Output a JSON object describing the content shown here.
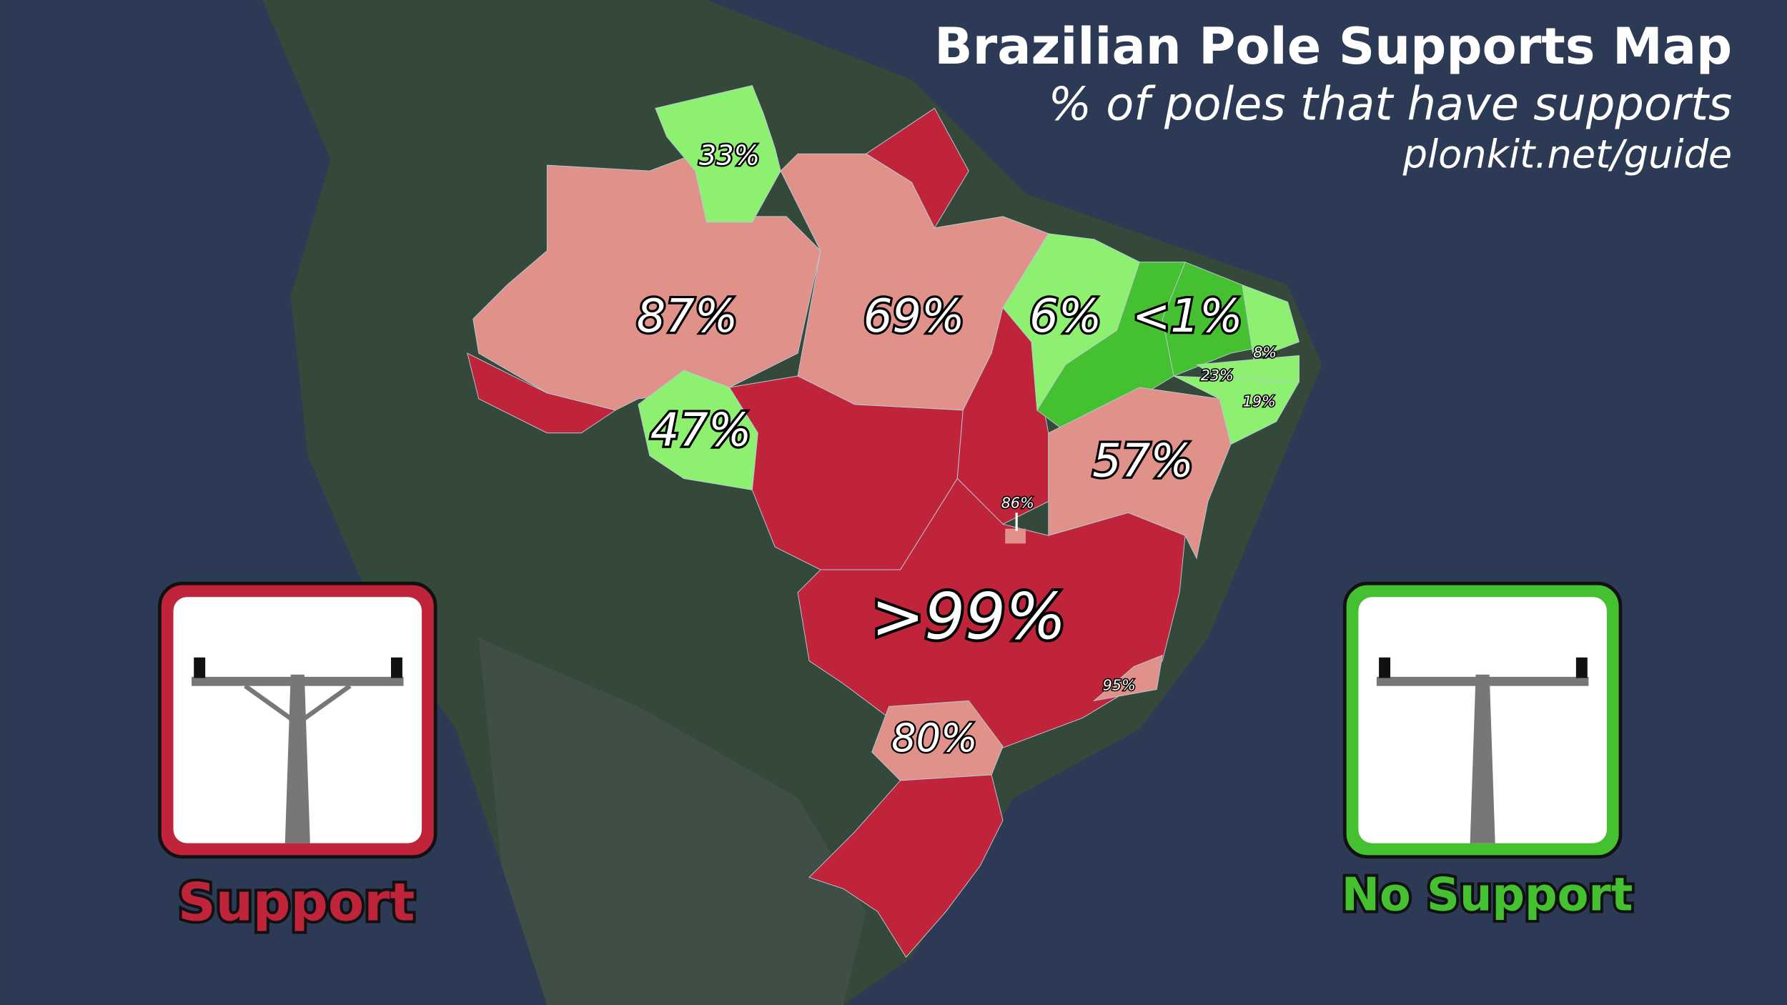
{
  "header": {
    "title": "Brazilian Pole Supports Map",
    "subtitle": "% of poles that have supports",
    "source": "plonkit.net/guide"
  },
  "regions": [
    {
      "label": "33%"
    },
    {
      "label": "87%"
    },
    {
      "label": "69%"
    },
    {
      "label": "6%"
    },
    {
      "label": "<1%"
    },
    {
      "label": "8%"
    },
    {
      "label": "23%"
    },
    {
      "label": "19%"
    },
    {
      "label": "47%"
    },
    {
      "label": "57%"
    },
    {
      "label": "86%"
    },
    {
      "label": ">99%"
    },
    {
      "label": "95%"
    },
    {
      "label": "80%"
    }
  ],
  "legend": [
    "Support",
    "No Support"
  ]
}
